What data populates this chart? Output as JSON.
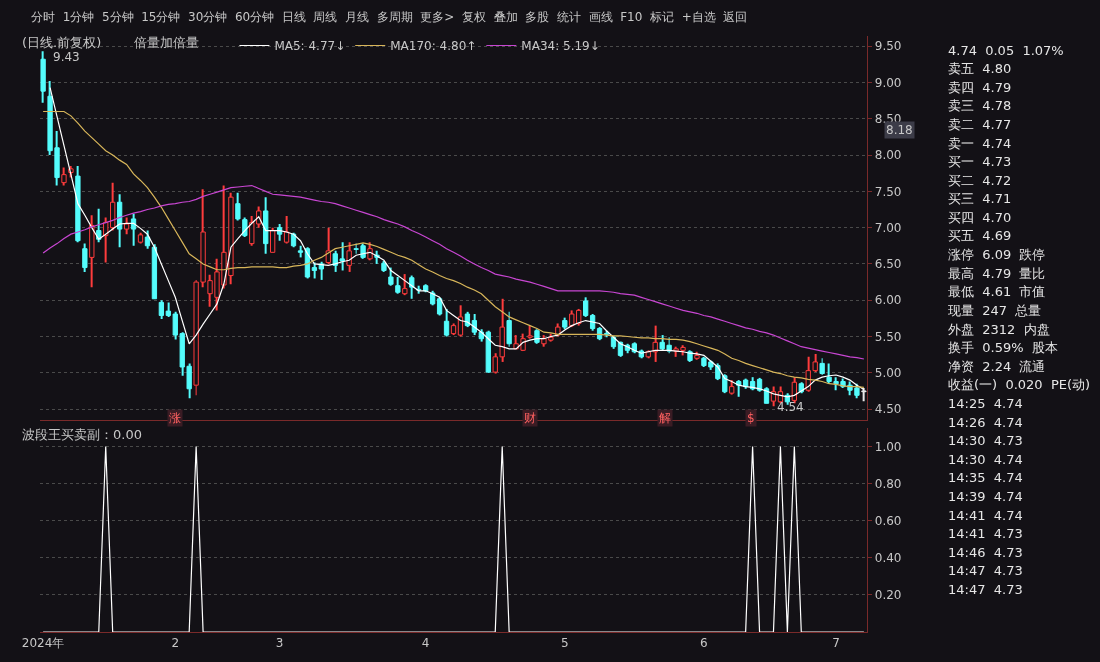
{
  "chart_data": [
    {
      "type": "candlestick",
      "title": "(日线.前复权)",
      "subtitle": "倍量加倍量",
      "categories": [
        null,
        null,
        null,
        null,
        null,
        null,
        null,
        null,
        null,
        null,
        null,
        null,
        null,
        null,
        null,
        null,
        null,
        null,
        null,
        null,
        null,
        null,
        null,
        null,
        null,
        null,
        null,
        null,
        null,
        null,
        null,
        null,
        null,
        null,
        null,
        null,
        null,
        null,
        null,
        null,
        null,
        null,
        null,
        null,
        null,
        null,
        null,
        null,
        null,
        null,
        null,
        null,
        null,
        null,
        null,
        null,
        null,
        null,
        null,
        null,
        null,
        null,
        null,
        null,
        null,
        null,
        null,
        null,
        null,
        null,
        null,
        null,
        null,
        null,
        null,
        null,
        null,
        null,
        null,
        null,
        null,
        null,
        null,
        null,
        null,
        null,
        null,
        null,
        null,
        null,
        null,
        null,
        null,
        null,
        null,
        null,
        null,
        null,
        null,
        null,
        null,
        null,
        null,
        null,
        null,
        null,
        null,
        null,
        null,
        null,
        null,
        null,
        null,
        null,
        null,
        null,
        null,
        null,
        null
      ],
      "ohlc": [
        [
          9.32,
          9.43,
          8.72,
          8.88
        ],
        [
          8.81,
          9.02,
          8.0,
          8.06
        ],
        [
          8.1,
          8.33,
          7.58,
          7.69
        ],
        [
          7.62,
          7.83,
          7.58,
          7.73
        ],
        [
          7.76,
          7.85,
          7.69,
          7.81
        ],
        [
          7.71,
          7.85,
          6.8,
          6.82
        ],
        [
          6.71,
          6.78,
          6.39,
          6.45
        ],
        [
          6.59,
          7.17,
          6.18,
          7.03
        ],
        [
          6.96,
          7.26,
          6.8,
          6.84
        ],
        [
          6.89,
          7.14,
          6.52,
          7.07
        ],
        [
          7.0,
          7.62,
          6.96,
          7.35
        ],
        [
          7.35,
          7.46,
          6.73,
          6.98
        ],
        [
          6.98,
          7.14,
          6.91,
          7.05
        ],
        [
          7.12,
          7.19,
          6.75,
          6.98
        ],
        [
          6.8,
          6.93,
          6.78,
          6.9
        ],
        [
          6.87,
          6.96,
          6.71,
          6.75
        ],
        [
          6.73,
          6.77,
          6.02,
          6.02
        ],
        [
          5.97,
          6.0,
          5.74,
          5.79
        ],
        [
          5.85,
          5.97,
          5.77,
          5.79
        ],
        [
          5.81,
          5.84,
          5.46,
          5.52
        ],
        [
          5.54,
          5.56,
          4.96,
          5.08
        ],
        [
          5.09,
          5.13,
          4.65,
          4.78
        ],
        [
          4.83,
          6.28,
          4.69,
          6.25
        ],
        [
          6.25,
          7.53,
          6.18,
          6.94
        ],
        [
          6.09,
          6.35,
          5.91,
          6.27
        ],
        [
          6.04,
          6.57,
          5.86,
          6.39
        ],
        [
          6.21,
          7.58,
          6.16,
          6.66
        ],
        [
          6.34,
          7.48,
          6.22,
          7.42
        ],
        [
          7.33,
          7.48,
          7.1,
          7.12
        ],
        [
          7.11,
          7.14,
          6.87,
          6.89
        ],
        [
          6.78,
          7.16,
          6.75,
          7.07
        ],
        [
          7.05,
          7.29,
          7.0,
          7.23
        ],
        [
          7.23,
          7.42,
          6.64,
          6.78
        ],
        [
          6.66,
          7.0,
          6.66,
          6.96
        ],
        [
          7.0,
          7.05,
          6.82,
          6.91
        ],
        [
          6.8,
          7.16,
          6.78,
          6.94
        ],
        [
          6.91,
          6.93,
          6.73,
          6.75
        ],
        [
          6.68,
          6.75,
          6.59,
          6.66
        ],
        [
          6.71,
          6.73,
          6.3,
          6.32
        ],
        [
          6.45,
          6.52,
          6.3,
          6.41
        ],
        [
          6.5,
          6.53,
          6.28,
          6.43
        ],
        [
          6.52,
          7.0,
          6.5,
          6.68
        ],
        [
          6.64,
          6.68,
          6.39,
          6.48
        ],
        [
          6.57,
          6.8,
          6.41,
          6.54
        ],
        [
          6.48,
          6.8,
          6.39,
          6.68
        ],
        [
          6.71,
          6.78,
          6.64,
          6.7
        ],
        [
          6.75,
          6.78,
          6.57,
          6.59
        ],
        [
          6.57,
          6.8,
          6.55,
          6.71
        ],
        [
          6.62,
          6.68,
          6.5,
          6.59
        ],
        [
          6.51,
          6.54,
          6.39,
          6.41
        ],
        [
          6.32,
          6.45,
          6.2,
          6.22
        ],
        [
          6.2,
          6.32,
          6.09,
          6.11
        ],
        [
          6.09,
          6.36,
          6.07,
          6.16
        ],
        [
          6.31,
          6.34,
          6.02,
          6.18
        ],
        [
          6.15,
          6.2,
          6.09,
          6.14
        ],
        [
          6.2,
          6.22,
          6.11,
          6.13
        ],
        [
          6.1,
          6.13,
          5.93,
          5.95
        ],
        [
          6.02,
          6.04,
          5.79,
          5.81
        ],
        [
          5.71,
          5.88,
          5.5,
          5.52
        ],
        [
          5.54,
          5.68,
          5.52,
          5.65
        ],
        [
          5.52,
          5.93,
          5.5,
          5.77
        ],
        [
          5.81,
          5.84,
          5.63,
          5.65
        ],
        [
          5.72,
          5.81,
          5.52,
          5.56
        ],
        [
          5.56,
          5.6,
          5.43,
          5.47
        ],
        [
          5.56,
          5.58,
          5.0,
          5.01
        ],
        [
          5.01,
          5.27,
          4.99,
          5.22
        ],
        [
          5.22,
          6.02,
          5.15,
          5.63
        ],
        [
          5.72,
          5.84,
          5.36,
          5.4
        ],
        [
          5.33,
          5.52,
          5.33,
          5.4
        ],
        [
          5.31,
          5.54,
          5.3,
          5.47
        ],
        [
          5.49,
          5.65,
          5.47,
          5.51
        ],
        [
          5.58,
          5.6,
          5.4,
          5.42
        ],
        [
          5.4,
          5.52,
          5.36,
          5.47
        ],
        [
          5.45,
          5.54,
          5.43,
          5.49
        ],
        [
          5.52,
          5.68,
          5.5,
          5.63
        ],
        [
          5.72,
          5.76,
          5.6,
          5.63
        ],
        [
          5.65,
          5.86,
          5.63,
          5.81
        ],
        [
          5.68,
          5.88,
          5.65,
          5.86
        ],
        [
          5.99,
          6.04,
          5.77,
          5.79
        ],
        [
          5.79,
          5.81,
          5.58,
          5.61
        ],
        [
          5.61,
          5.63,
          5.45,
          5.47
        ],
        [
          5.54,
          5.58,
          5.49,
          5.53
        ],
        [
          5.49,
          5.51,
          5.33,
          5.36
        ],
        [
          5.42,
          5.43,
          5.22,
          5.24
        ],
        [
          5.38,
          5.4,
          5.27,
          5.31
        ],
        [
          5.4,
          5.42,
          5.27,
          5.29
        ],
        [
          5.3,
          5.32,
          5.2,
          5.22
        ],
        [
          5.22,
          5.31,
          5.2,
          5.29
        ],
        [
          5.29,
          5.65,
          5.15,
          5.42
        ],
        [
          5.42,
          5.52,
          5.31,
          5.33
        ],
        [
          5.38,
          5.49,
          5.27,
          5.3
        ],
        [
          5.3,
          5.36,
          5.22,
          5.33
        ],
        [
          5.31,
          5.38,
          5.24,
          5.35
        ],
        [
          5.29,
          5.31,
          5.15,
          5.17
        ],
        [
          5.2,
          5.29,
          5.18,
          5.24
        ],
        [
          5.2,
          5.22,
          5.08,
          5.1
        ],
        [
          5.15,
          5.17,
          5.04,
          5.08
        ],
        [
          5.1,
          5.13,
          4.9,
          4.92
        ],
        [
          4.96,
          4.98,
          4.72,
          4.74
        ],
        [
          4.72,
          4.9,
          4.7,
          4.81
        ],
        [
          4.88,
          4.9,
          4.67,
          4.83
        ],
        [
          4.9,
          4.92,
          4.78,
          4.81
        ],
        [
          4.88,
          4.94,
          4.76,
          4.78
        ],
        [
          4.91,
          4.93,
          4.74,
          4.76
        ],
        [
          4.78,
          4.8,
          4.58,
          4.58
        ],
        [
          4.61,
          4.81,
          4.54,
          4.74
        ],
        [
          4.6,
          4.81,
          4.58,
          4.74
        ],
        [
          4.69,
          4.72,
          4.56,
          4.6
        ],
        [
          4.62,
          4.94,
          4.58,
          4.87
        ],
        [
          4.85,
          4.87,
          4.72,
          4.74
        ],
        [
          4.76,
          5.22,
          4.74,
          5.03
        ],
        [
          5.03,
          5.26,
          5.01,
          5.15
        ],
        [
          5.13,
          5.2,
          4.97,
          4.99
        ],
        [
          4.94,
          5.13,
          4.85,
          4.88
        ],
        [
          4.88,
          4.94,
          4.76,
          4.85
        ],
        [
          4.88,
          4.92,
          4.79,
          4.81
        ],
        [
          4.83,
          4.88,
          4.69,
          4.76
        ],
        [
          4.79,
          4.85,
          4.65,
          4.69
        ],
        [
          4.75,
          4.79,
          4.61,
          4.74
        ]
      ],
      "colors": [
        "#54fcfc",
        "#54fcfc",
        "#54fcfc",
        "#ff3c3c",
        "#ff3c3c",
        "#54fcfc",
        "#54fcfc",
        "#ff3c3c",
        "#54fcfc",
        "#ff3c3c",
        "#ff3c3c",
        "#54fcfc",
        "#ff3c3c",
        "#54fcfc",
        "#ff3c3c",
        "#54fcfc",
        "#54fcfc",
        "#54fcfc",
        "#54fcfc",
        "#54fcfc",
        "#54fcfc",
        "#54fcfc",
        "#ff3c3c",
        "#ff3c3c",
        "#ff3c3c",
        "#ff3c3c",
        "#ff3c3c",
        "#ff3c3c",
        "#54fcfc",
        "#54fcfc",
        "#ff3c3c",
        "#ff3c3c",
        "#54fcfc",
        "#ff3c3c",
        "#54fcfc",
        "#ff3c3c",
        "#54fcfc",
        "#54fcfc",
        "#54fcfc",
        "#54fcfc",
        "#54fcfc",
        "#ff3c3c",
        "#54fcfc",
        "#54fcfc",
        "#ff3c3c",
        "#54fcfc",
        "#54fcfc",
        "#ff3c3c",
        "#54fcfc",
        "#54fcfc",
        "#54fcfc",
        "#54fcfc",
        "#ff3c3c",
        "#54fcfc",
        "#54fcfc",
        "#54fcfc",
        "#54fcfc",
        "#54fcfc",
        "#54fcfc",
        "#ff3c3c",
        "#ff3c3c",
        "#54fcfc",
        "#54fcfc",
        "#54fcfc",
        "#54fcfc",
        "#ff3c3c",
        "#ff3c3c",
        "#54fcfc",
        "#ff3c3c",
        "#ff3c3c",
        "#ff3c3c",
        "#54fcfc",
        "#ff3c3c",
        "#ff3c3c",
        "#ff3c3c",
        "#54fcfc",
        "#ff3c3c",
        "#ff3c3c",
        "#54fcfc",
        "#54fcfc",
        "#54fcfc",
        "#54fcfc",
        "#54fcfc",
        "#54fcfc",
        "#54fcfc",
        "#54fcfc",
        "#54fcfc",
        "#ff3c3c",
        "#ff3c3c",
        "#54fcfc",
        "#54fcfc",
        "#ff3c3c",
        "#ff3c3c",
        "#54fcfc",
        "#ff3c3c",
        "#54fcfc",
        "#54fcfc",
        "#54fcfc",
        "#54fcfc",
        "#ff3c3c",
        "#54fcfc",
        "#54fcfc",
        "#54fcfc",
        "#54fcfc",
        "#54fcfc",
        "#ff3c3c",
        "#ff3c3c",
        "#54fcfc",
        "#ff3c3c",
        "#54fcfc",
        "#ff3c3c",
        "#ff3c3c",
        "#54fcfc",
        "#54fcfc",
        "#54fcfc",
        "#54fcfc",
        "#54fcfc",
        "#54fcfc",
        "#e8e8e8"
      ],
      "series": [
        {
          "type": "line",
          "name": "MA5: 4.77↓",
          "color": "#ffffff",
          "values": [
            null,
            8.93,
            8.53,
            8.13,
            7.73,
            7.33,
            7.17,
            7.0,
            6.84,
            6.91,
            6.98,
            7.05,
            7.06,
            7.06,
            6.99,
            6.91,
            6.73,
            6.5,
            6.27,
            6.04,
            5.72,
            5.4,
            5.52,
            5.67,
            5.81,
            5.95,
            6.23,
            6.73,
            6.85,
            6.96,
            7.06,
            7.15,
            6.96,
            6.96,
            6.96,
            6.94,
            6.91,
            6.82,
            6.64,
            6.5,
            6.49,
            6.48,
            6.5,
            6.53,
            6.55,
            6.62,
            6.64,
            6.66,
            6.61,
            6.55,
            6.41,
            6.34,
            6.27,
            6.2,
            6.13,
            6.13,
            6.09,
            6.04,
            5.86,
            5.79,
            5.72,
            5.7,
            5.63,
            5.56,
            5.47,
            5.38,
            5.36,
            5.33,
            5.33,
            5.42,
            5.45,
            5.47,
            5.47,
            5.5,
            5.52,
            5.59,
            5.65,
            5.69,
            5.72,
            5.7,
            5.68,
            5.58,
            5.49,
            5.4,
            5.36,
            5.31,
            5.27,
            5.29,
            5.31,
            5.31,
            5.31,
            5.3,
            5.29,
            5.27,
            5.26,
            5.24,
            5.16,
            5.08,
            4.92,
            4.88,
            4.83,
            4.81,
            4.8,
            4.78,
            4.75,
            4.71,
            4.69,
            4.67,
            4.69,
            4.75,
            4.81,
            4.9,
            4.94,
            4.96,
            4.97,
            4.94,
            4.9,
            4.83,
            4.77
          ]
        },
        {
          "type": "line",
          "name": "MA170: 4.80↑",
          "color": "#d8b65a",
          "values": [
            8.6,
            8.6,
            8.6,
            8.6,
            8.54,
            8.44,
            8.33,
            8.24,
            8.15,
            8.06,
            8.0,
            7.93,
            7.87,
            7.74,
            7.65,
            7.55,
            7.42,
            7.28,
            7.12,
            6.96,
            6.8,
            6.64,
            6.57,
            6.5,
            6.46,
            6.42,
            6.42,
            6.44,
            6.45,
            6.45,
            6.46,
            6.46,
            6.46,
            6.46,
            6.45,
            6.45,
            6.47,
            6.48,
            6.5,
            6.55,
            6.59,
            6.65,
            6.71,
            6.73,
            6.75,
            6.77,
            6.79,
            6.77,
            6.74,
            6.7,
            6.66,
            6.62,
            6.59,
            6.55,
            6.49,
            6.43,
            6.39,
            6.34,
            6.3,
            6.27,
            6.23,
            6.18,
            6.14,
            6.09,
            6.0,
            5.91,
            5.84,
            5.77,
            5.73,
            5.69,
            5.65,
            5.61,
            5.56,
            5.55,
            5.53,
            5.53,
            5.53,
            5.53,
            5.53,
            5.53,
            5.53,
            5.52,
            5.51,
            5.51,
            5.5,
            5.49,
            5.48,
            5.48,
            5.47,
            5.47,
            5.46,
            5.46,
            5.45,
            5.43,
            5.4,
            5.37,
            5.34,
            5.31,
            5.26,
            5.2,
            5.17,
            5.13,
            5.1,
            5.07,
            5.04,
            5.01,
            4.99,
            4.96,
            4.94,
            4.93,
            4.91,
            4.9,
            4.88,
            4.85,
            4.84,
            4.82,
            4.81,
            4.81,
            4.8
          ]
        },
        {
          "type": "line",
          "name": "MA34: 5.19↓",
          "color": "#c846d2",
          "values": [
            6.65,
            6.72,
            6.78,
            6.85,
            6.91,
            6.94,
            6.97,
            7.01,
            7.04,
            7.07,
            7.1,
            7.14,
            7.17,
            7.2,
            7.22,
            7.25,
            7.27,
            7.3,
            7.32,
            7.33,
            7.35,
            7.36,
            7.39,
            7.43,
            7.46,
            7.49,
            7.52,
            7.55,
            7.56,
            7.57,
            7.58,
            7.54,
            7.5,
            7.46,
            7.45,
            7.44,
            7.43,
            7.42,
            7.4,
            7.38,
            7.36,
            7.35,
            7.33,
            7.3,
            7.27,
            7.24,
            7.21,
            7.18,
            7.15,
            7.11,
            7.08,
            7.05,
            7.01,
            6.96,
            6.92,
            6.87,
            6.82,
            6.77,
            6.71,
            6.66,
            6.61,
            6.55,
            6.5,
            6.45,
            6.41,
            6.36,
            6.34,
            6.32,
            6.29,
            6.27,
            6.25,
            6.22,
            6.19,
            6.16,
            6.13,
            6.13,
            6.13,
            6.13,
            6.13,
            6.13,
            6.13,
            6.12,
            6.11,
            6.09,
            6.08,
            6.07,
            6.04,
            6.01,
            5.98,
            5.95,
            5.92,
            5.89,
            5.86,
            5.84,
            5.82,
            5.79,
            5.77,
            5.74,
            5.71,
            5.68,
            5.65,
            5.62,
            5.6,
            5.57,
            5.55,
            5.52,
            5.48,
            5.44,
            5.4,
            5.36,
            5.34,
            5.32,
            5.3,
            5.28,
            5.26,
            5.24,
            5.22,
            5.21,
            5.19
          ]
        }
      ],
      "ylim": [
        4.35,
        9.64
      ],
      "yticks": [
        {
          "value": 4.5,
          "label": "4.50"
        },
        {
          "value": 5,
          "label": "5.00"
        },
        {
          "value": 5.5,
          "label": "5.50"
        },
        {
          "value": 6,
          "label": "6.00"
        },
        {
          "value": 6.5,
          "label": "6.50"
        },
        {
          "value": 7,
          "label": "7.00"
        },
        {
          "value": 7.5,
          "label": "7.50"
        },
        {
          "value": 8,
          "label": "8.00"
        },
        {
          "value": 8.5,
          "label": "8.50"
        },
        {
          "value": 9,
          "label": "9.00"
        },
        {
          "value": 9.5,
          "label": "9.50"
        }
      ],
      "grid": "y",
      "legend": "top left",
      "tick_labels": "y",
      "annotations": [
        "9.43",
        "4.54",
        "涨",
        "财",
        "解",
        "$",
        "8.18",
        "分时  1分钟  5分钟  15分钟  30分钟  60分钟  日线  周线  月线  多周期  更多>  复权  叠加  多股  统计  画线  F10  标记  +自选  返回",
        "4.74  0.05  1.07%",
        "卖五  4.80",
        "卖四  4.79",
        "卖三  4.78",
        "卖二  4.77",
        "卖一  4.74",
        "买一  4.73",
        "买二  4.72",
        "买三  4.71",
        "买四  4.70",
        "买五  4.69",
        "涨停  6.09  跌停",
        "最高  4.79  量比",
        "最低  4.61  市值",
        "现量  247  总量",
        "外盘  2312  内盘",
        "换手  0.59%  股本",
        "净资  2.24  流通",
        "收益(一)  0.020  PE(动)",
        "14:25  4.74",
        "14:26  4.74",
        "14:30  4.73",
        "14:30  4.74",
        "14:35  4.74",
        "14:39  4.74",
        "14:41  4.74",
        "14:41  4.73",
        "14:46  4.73",
        "14:47  4.73",
        "14:47  4.73"
      ]
    },
    {
      "type": "line",
      "title": "波段王买卖副：0.00",
      "categories": [
        "2024年",
        null,
        null,
        null,
        null,
        null,
        null,
        null,
        null,
        null,
        null,
        null,
        null,
        null,
        null,
        null,
        null,
        null,
        null,
        "2",
        null,
        null,
        null,
        null,
        null,
        null,
        null,
        null,
        null,
        null,
        null,
        null,
        null,
        null,
        "3",
        null,
        null,
        null,
        null,
        null,
        null,
        null,
        null,
        null,
        null,
        null,
        null,
        null,
        null,
        null,
        null,
        null,
        null,
        null,
        null,
        "4",
        null,
        null,
        null,
        null,
        null,
        null,
        null,
        null,
        null,
        null,
        null,
        null,
        null,
        null,
        null,
        null,
        null,
        null,
        null,
        "5",
        null,
        null,
        null,
        null,
        null,
        null,
        null,
        null,
        null,
        null,
        null,
        null,
        null,
        null,
        null,
        null,
        null,
        null,
        null,
        "6",
        null,
        null,
        null,
        null,
        null,
        null,
        null,
        null,
        null,
        null,
        null,
        null,
        null,
        null,
        null,
        null,
        null,
        null,
        "7",
        null,
        null,
        null,
        null
      ],
      "series": [
        {
          "type": "line",
          "color": "#ffffff",
          "values": [
            0,
            0,
            0,
            0,
            0,
            0,
            0,
            0,
            0,
            1,
            0,
            0,
            0,
            0,
            0,
            0,
            0,
            0,
            0,
            0,
            0,
            0,
            1,
            0,
            0,
            0,
            0,
            0,
            0,
            0,
            0,
            0,
            0,
            0,
            0,
            0,
            0,
            0,
            0,
            0,
            0,
            0,
            0,
            0,
            0,
            0,
            0,
            0,
            0,
            0,
            0,
            0,
            0,
            0,
            0,
            0,
            0,
            0,
            0,
            0,
            0,
            0,
            0,
            0,
            0,
            0,
            1,
            0,
            0,
            0,
            0,
            0,
            0,
            0,
            0,
            0,
            0,
            0,
            0,
            0,
            0,
            0,
            0,
            0,
            0,
            0,
            0,
            0,
            0,
            0,
            0,
            0,
            0,
            0,
            0,
            0,
            0,
            0,
            0,
            0,
            0,
            0,
            1,
            0,
            0,
            0,
            1,
            0,
            1,
            0,
            0,
            0,
            0,
            0,
            0,
            0,
            0,
            0,
            0
          ]
        }
      ],
      "ylim": [
        0,
        1.1
      ],
      "yticks": [
        {
          "value": 0.2,
          "label": "0.20"
        },
        {
          "value": 0.4,
          "label": "0.40"
        },
        {
          "value": 0.6,
          "label": "0.60"
        },
        {
          "value": 0.8,
          "label": "0.80"
        },
        {
          "value": 1,
          "label": "1.00"
        }
      ],
      "grid": "y"
    }
  ]
}
